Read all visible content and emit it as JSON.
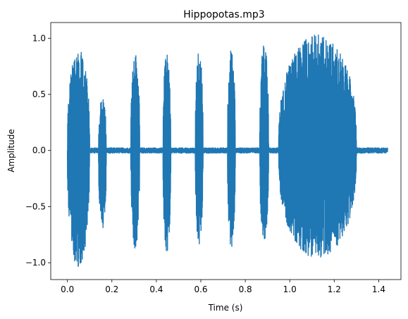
{
  "chart_data": {
    "type": "line",
    "title": "Hippopotas.mp3",
    "xlabel": "Time (s)",
    "ylabel": "Amplitude",
    "xlim": [
      -0.075,
      1.5
    ],
    "ylim": [
      -1.15,
      1.14
    ],
    "xticks": [
      0.0,
      0.2,
      0.4,
      0.6,
      0.8,
      1.0,
      1.2,
      1.4
    ],
    "xtick_labels": [
      "0.0",
      "0.2",
      "0.4",
      "0.6",
      "0.8",
      "1.0",
      "1.2",
      "1.4"
    ],
    "yticks": [
      -1.0,
      -0.5,
      0.0,
      0.5,
      1.0
    ],
    "ytick_labels": [
      "−1.0",
      "−0.5",
      "0.0",
      "0.5",
      "1.0"
    ],
    "grid": false,
    "series": [
      {
        "color": "#1f77b4",
        "x_range": [
          0.0,
          1.44
        ],
        "baseline_noise_amplitude": 0.02,
        "bursts": [
          {
            "start": 0.0,
            "end": 0.1,
            "peak_max": 0.9,
            "peak_min": -1.04
          },
          {
            "start": 0.14,
            "end": 0.175,
            "peak_max": 0.48,
            "peak_min": -0.7
          },
          {
            "start": 0.285,
            "end": 0.325,
            "peak_max": 0.88,
            "peak_min": -0.88
          },
          {
            "start": 0.43,
            "end": 0.465,
            "peak_max": 0.88,
            "peak_min": -0.92
          },
          {
            "start": 0.575,
            "end": 0.61,
            "peak_max": 0.92,
            "peak_min": -0.86
          },
          {
            "start": 0.72,
            "end": 0.755,
            "peak_max": 0.92,
            "peak_min": -0.88
          },
          {
            "start": 0.865,
            "end": 0.905,
            "peak_max": 0.95,
            "peak_min": -0.8
          },
          {
            "start": 0.95,
            "end": 1.3,
            "peak_max": 1.04,
            "peak_min": -0.96
          }
        ]
      }
    ]
  }
}
